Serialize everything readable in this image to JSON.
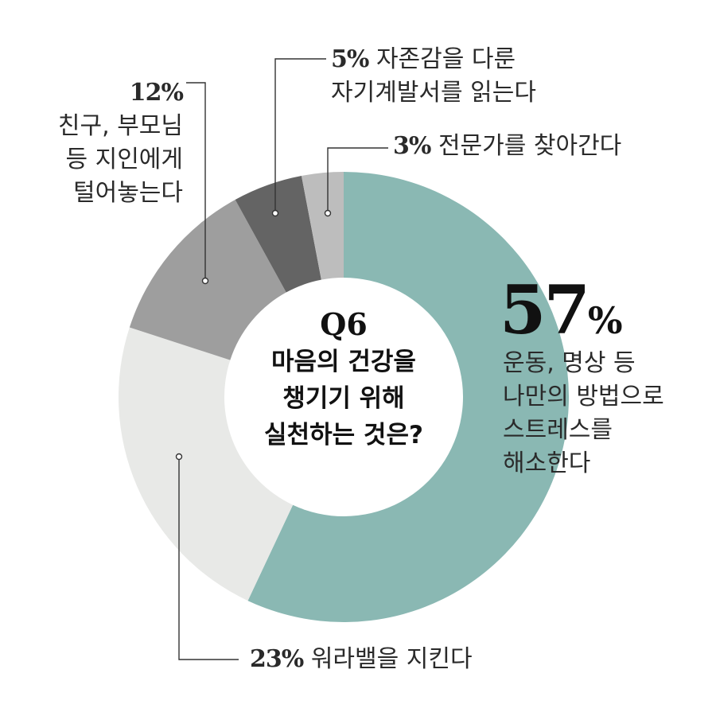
{
  "chart_data": {
    "type": "pie",
    "title": "Q6",
    "subtitle_lines": [
      "마음의 건강을",
      "챙기기 위해",
      "실천하는 것은?"
    ],
    "slices": [
      {
        "value": 57,
        "label": "57%",
        "text_lines": [
          "운동, 명상 등",
          "나만의 방법으로",
          "스트레스를",
          "해소한다"
        ],
        "color": "#8ab8b3"
      },
      {
        "value": 23,
        "label": "23%",
        "text_lines": [
          "워라밸을 지킨다"
        ],
        "color": "#e8e9e7"
      },
      {
        "value": 12,
        "label": "12%",
        "text_lines": [
          "친구, 부모님",
          "등 지인에게",
          "털어놓는다"
        ],
        "color": "#9e9e9e"
      },
      {
        "value": 5,
        "label": "5%",
        "text_lines": [
          "자존감을 다룬",
          "자기계발서를 읽는다"
        ],
        "color": "#646464"
      },
      {
        "value": 3,
        "label": "3%",
        "text_lines": [
          "전문가를 찾아간다"
        ],
        "color": "#bdbdbd"
      }
    ]
  }
}
